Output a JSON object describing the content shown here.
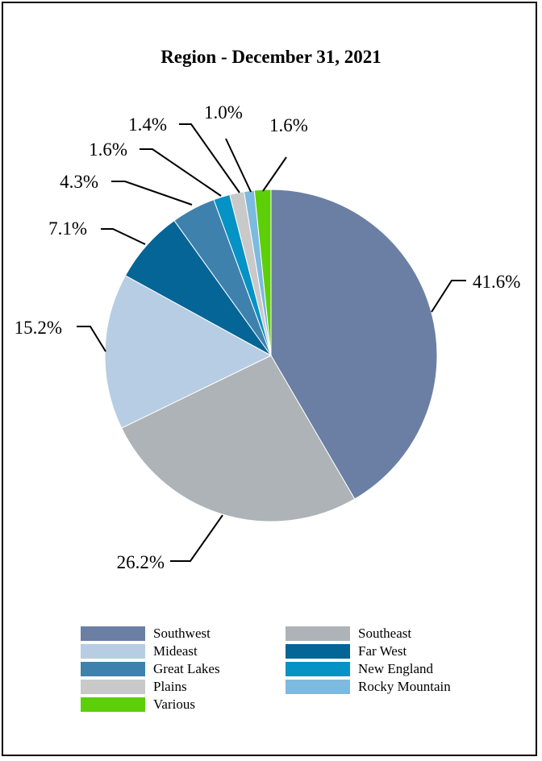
{
  "chart_data": {
    "type": "pie",
    "title": "Region - December 31, 2021",
    "slices": [
      {
        "name": "Southwest",
        "value": 41.6,
        "label": "41.6%",
        "color": "#6a7fa3"
      },
      {
        "name": "Southeast",
        "value": 26.2,
        "label": "26.2%",
        "color": "#adb3b7"
      },
      {
        "name": "Mideast",
        "value": 15.2,
        "label": "15.2%",
        "color": "#b7cde3"
      },
      {
        "name": "Far West",
        "value": 7.1,
        "label": "7.1%",
        "color": "#056597"
      },
      {
        "name": "Great Lakes",
        "value": 4.3,
        "label": "4.3%",
        "color": "#3e81ad"
      },
      {
        "name": "New England",
        "value": 1.6,
        "label": "1.6%",
        "color": "#0592c4"
      },
      {
        "name": "Plains",
        "value": 1.4,
        "label": "1.4%",
        "color": "#c9c9c9"
      },
      {
        "name": "Rocky Mountain",
        "value": 1.0,
        "label": "1.0%",
        "color": "#7cbadf"
      },
      {
        "name": "Various",
        "value": 1.6,
        "label": "1.6%",
        "color": "#5dcf08"
      }
    ],
    "legend": {
      "placement": "bottom",
      "entries": [
        "Southwest",
        "Southeast",
        "Mideast",
        "Far West",
        "Great Lakes",
        "New England",
        "Plains",
        "Rocky Mountain",
        "Various"
      ]
    }
  }
}
